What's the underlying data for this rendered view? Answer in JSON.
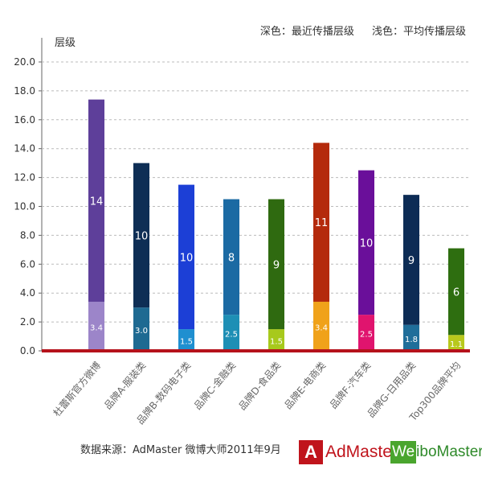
{
  "legend": {
    "dark": "深色：最近传播层级",
    "light": "浅色：平均传播层级"
  },
  "footer": {
    "source": "数据来源：AdMaster 微博大师2011年9月",
    "logo_admaster": "AdMaster",
    "logo_weibomaster": "WeiboMaster"
  },
  "chart_data": {
    "type": "bar",
    "stacked": true,
    "ylabel": "层级",
    "ylim": [
      0,
      20
    ],
    "yticks": [
      "0.0",
      "2.0",
      "4.0",
      "6.0",
      "8.0",
      "10.0",
      "12.0",
      "14.0",
      "16.0",
      "18.0",
      "20.0"
    ],
    "grid": true,
    "categories": [
      "杜蕾斯官方微博",
      "品牌A-服装类",
      "品牌B-数码电子类",
      "品牌C-金融类",
      "品牌D-食品类",
      "品牌E-电商类",
      "品牌F-汽车类",
      "品牌G-日用品类",
      "Top300品牌平均"
    ],
    "series": [
      {
        "name": "浅色：平均传播层级",
        "values": [
          3.4,
          3.0,
          1.5,
          2.5,
          1.5,
          3.4,
          2.5,
          1.8,
          1.1
        ],
        "colors": [
          "#9c85c9",
          "#1e6a92",
          "#1f8fd0",
          "#1e8fb5",
          "#a7c91c",
          "#f0a21a",
          "#e0146e",
          "#1f6e9a",
          "#b8c81c"
        ]
      },
      {
        "name": "深色：最近传播层级",
        "values": [
          14,
          10,
          10,
          8,
          9,
          11,
          10,
          9,
          6
        ],
        "colors": [
          "#5e3f9a",
          "#0e2e55",
          "#1c3fd6",
          "#1b6aa3",
          "#2f6a10",
          "#b42a0c",
          "#6a0f9a",
          "#0d2c55",
          "#2e6e10"
        ]
      }
    ],
    "axis_color": "#b5121b"
  }
}
